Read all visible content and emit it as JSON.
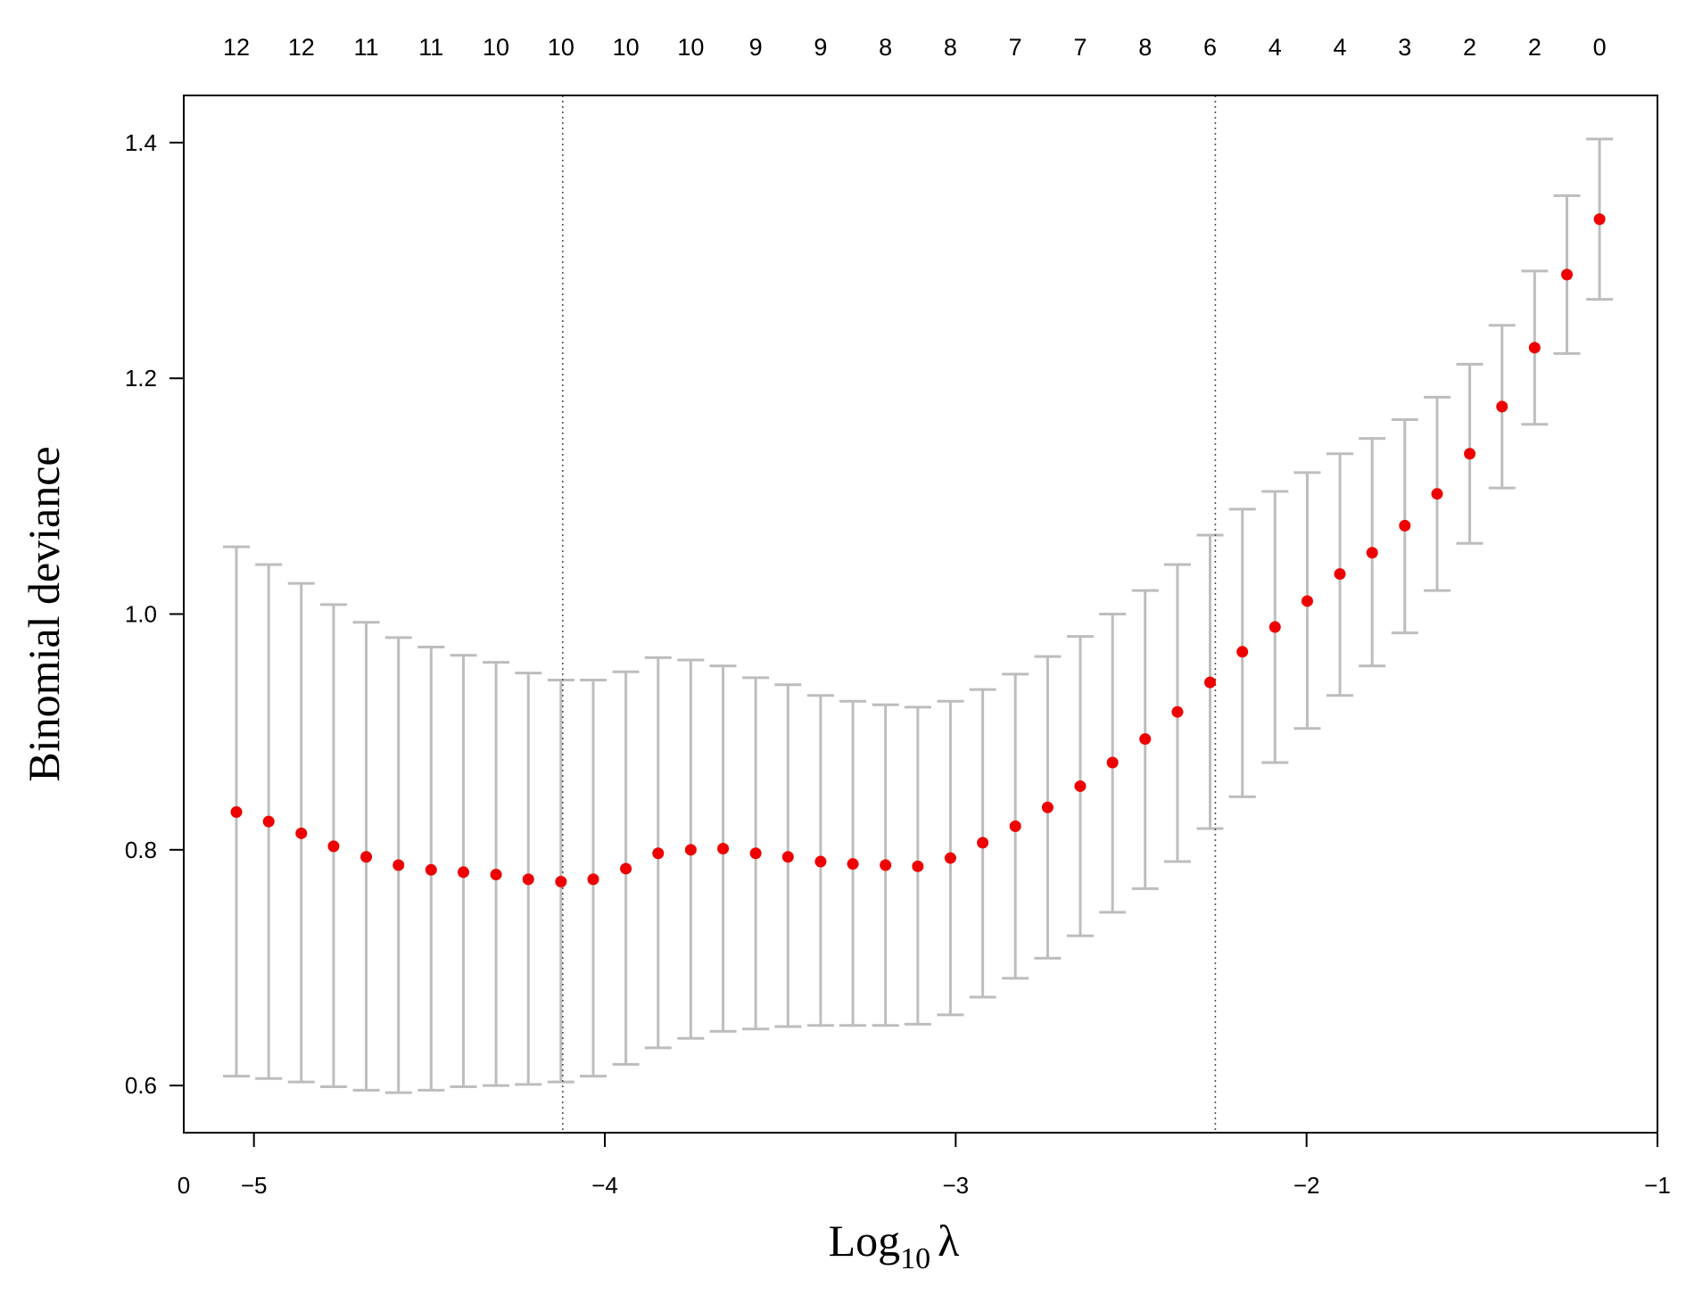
{
  "chart_data": {
    "type": "scatter",
    "title": "",
    "xlabel": {
      "base": "Log",
      "sub": "10",
      "symbol": "λ"
    },
    "ylabel": "Binomial deviance",
    "xlim": [
      -5.2,
      -1.0
    ],
    "ylim": [
      0.56,
      1.44
    ],
    "x_ticks": [
      {
        "value": -5,
        "label": "−5"
      },
      {
        "value": -4,
        "label": "−4"
      },
      {
        "value": -3,
        "label": "−3"
      },
      {
        "value": -2,
        "label": "−2"
      },
      {
        "value": -1,
        "label": "−1"
      }
    ],
    "x_origin_label": "0",
    "y_ticks": [
      {
        "value": 0.6,
        "label": "0.6"
      },
      {
        "value": 0.8,
        "label": "0.8"
      },
      {
        "value": 1.0,
        "label": "1.0"
      },
      {
        "value": 1.2,
        "label": "1.2"
      },
      {
        "value": 1.4,
        "label": "1.4"
      }
    ],
    "top_axis": [
      {
        "x": -5.05,
        "label": "12"
      },
      {
        "x": -4.865,
        "label": "12"
      },
      {
        "x": -4.68,
        "label": "11"
      },
      {
        "x": -4.495,
        "label": "11"
      },
      {
        "x": -4.31,
        "label": "10"
      },
      {
        "x": -4.125,
        "label": "10"
      },
      {
        "x": -3.94,
        "label": "10"
      },
      {
        "x": -3.755,
        "label": "10"
      },
      {
        "x": -3.57,
        "label": "9"
      },
      {
        "x": -3.385,
        "label": "9"
      },
      {
        "x": -3.2,
        "label": "8"
      },
      {
        "x": -3.015,
        "label": "8"
      },
      {
        "x": -2.83,
        "label": "7"
      },
      {
        "x": -2.645,
        "label": "7"
      },
      {
        "x": -2.46,
        "label": "8"
      },
      {
        "x": -2.275,
        "label": "6"
      },
      {
        "x": -2.09,
        "label": "4"
      },
      {
        "x": -1.905,
        "label": "4"
      },
      {
        "x": -1.72,
        "label": "3"
      },
      {
        "x": -1.535,
        "label": "2"
      },
      {
        "x": -1.35,
        "label": "2"
      },
      {
        "x": -1.165,
        "label": "0"
      }
    ],
    "vlines": [
      -4.12,
      -2.26
    ],
    "grid": false,
    "legend": "none",
    "colors": {
      "point": "#ee0000",
      "errorbar": "#bdbdbd",
      "axis": "#000000",
      "vline": "#555555"
    },
    "points": [
      {
        "x": -5.05,
        "y": 0.832,
        "lo": 0.608,
        "hi": 1.057
      },
      {
        "x": -4.958,
        "y": 0.824,
        "lo": 0.606,
        "hi": 1.042
      },
      {
        "x": -4.865,
        "y": 0.814,
        "lo": 0.603,
        "hi": 1.026
      },
      {
        "x": -4.773,
        "y": 0.803,
        "lo": 0.599,
        "hi": 1.008
      },
      {
        "x": -4.68,
        "y": 0.794,
        "lo": 0.596,
        "hi": 0.993
      },
      {
        "x": -4.588,
        "y": 0.787,
        "lo": 0.594,
        "hi": 0.98
      },
      {
        "x": -4.495,
        "y": 0.783,
        "lo": 0.596,
        "hi": 0.972
      },
      {
        "x": -4.403,
        "y": 0.781,
        "lo": 0.599,
        "hi": 0.965
      },
      {
        "x": -4.31,
        "y": 0.779,
        "lo": 0.6,
        "hi": 0.959
      },
      {
        "x": -4.218,
        "y": 0.775,
        "lo": 0.601,
        "hi": 0.95
      },
      {
        "x": -4.125,
        "y": 0.773,
        "lo": 0.603,
        "hi": 0.944
      },
      {
        "x": -4.033,
        "y": 0.775,
        "lo": 0.608,
        "hi": 0.944
      },
      {
        "x": -3.94,
        "y": 0.784,
        "lo": 0.618,
        "hi": 0.951
      },
      {
        "x": -3.848,
        "y": 0.797,
        "lo": 0.632,
        "hi": 0.963
      },
      {
        "x": -3.755,
        "y": 0.8,
        "lo": 0.64,
        "hi": 0.961
      },
      {
        "x": -3.663,
        "y": 0.801,
        "lo": 0.646,
        "hi": 0.956
      },
      {
        "x": -3.57,
        "y": 0.797,
        "lo": 0.648,
        "hi": 0.946
      },
      {
        "x": -3.478,
        "y": 0.794,
        "lo": 0.65,
        "hi": 0.94
      },
      {
        "x": -3.385,
        "y": 0.79,
        "lo": 0.651,
        "hi": 0.931
      },
      {
        "x": -3.293,
        "y": 0.788,
        "lo": 0.651,
        "hi": 0.926
      },
      {
        "x": -3.2,
        "y": 0.787,
        "lo": 0.651,
        "hi": 0.923
      },
      {
        "x": -3.108,
        "y": 0.786,
        "lo": 0.652,
        "hi": 0.921
      },
      {
        "x": -3.015,
        "y": 0.793,
        "lo": 0.66,
        "hi": 0.926
      },
      {
        "x": -2.923,
        "y": 0.806,
        "lo": 0.675,
        "hi": 0.936
      },
      {
        "x": -2.83,
        "y": 0.82,
        "lo": 0.691,
        "hi": 0.949
      },
      {
        "x": -2.738,
        "y": 0.836,
        "lo": 0.708,
        "hi": 0.964
      },
      {
        "x": -2.645,
        "y": 0.854,
        "lo": 0.727,
        "hi": 0.981
      },
      {
        "x": -2.553,
        "y": 0.874,
        "lo": 0.747,
        "hi": 1.0
      },
      {
        "x": -2.46,
        "y": 0.894,
        "lo": 0.767,
        "hi": 1.02
      },
      {
        "x": -2.368,
        "y": 0.917,
        "lo": 0.79,
        "hi": 1.042
      },
      {
        "x": -2.275,
        "y": 0.942,
        "lo": 0.818,
        "hi": 1.067
      },
      {
        "x": -2.183,
        "y": 0.968,
        "lo": 0.845,
        "hi": 1.089
      },
      {
        "x": -2.09,
        "y": 0.989,
        "lo": 0.874,
        "hi": 1.104
      },
      {
        "x": -1.998,
        "y": 1.011,
        "lo": 0.903,
        "hi": 1.12
      },
      {
        "x": -1.905,
        "y": 1.034,
        "lo": 0.931,
        "hi": 1.136
      },
      {
        "x": -1.813,
        "y": 1.052,
        "lo": 0.956,
        "hi": 1.149
      },
      {
        "x": -1.72,
        "y": 1.075,
        "lo": 0.984,
        "hi": 1.165
      },
      {
        "x": -1.628,
        "y": 1.102,
        "lo": 1.02,
        "hi": 1.184
      },
      {
        "x": -1.535,
        "y": 1.136,
        "lo": 1.06,
        "hi": 1.212
      },
      {
        "x": -1.443,
        "y": 1.176,
        "lo": 1.107,
        "hi": 1.245
      },
      {
        "x": -1.35,
        "y": 1.226,
        "lo": 1.161,
        "hi": 1.291
      },
      {
        "x": -1.258,
        "y": 1.288,
        "lo": 1.221,
        "hi": 1.355
      },
      {
        "x": -1.165,
        "y": 1.335,
        "lo": 1.267,
        "hi": 1.403
      }
    ]
  }
}
